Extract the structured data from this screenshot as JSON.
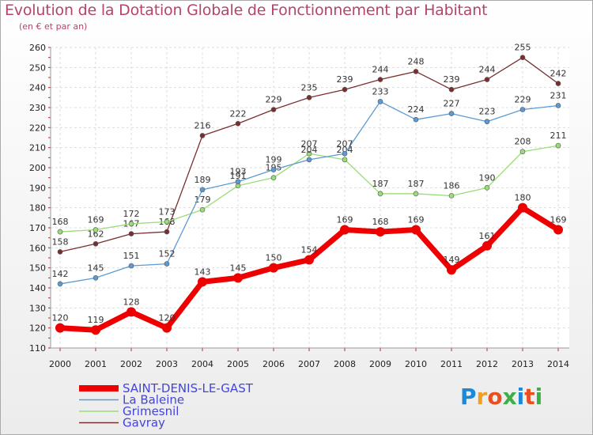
{
  "title": "Evolution de la Dotation Globale de Fonctionnement par Habitant",
  "subtitle": "(en € et par an)",
  "brand": {
    "text": "Proxiti",
    "colors": [
      "#1e88d8",
      "#f0a020",
      "#e85020",
      "#3fae49",
      "#1e88d8",
      "#e85020",
      "#3fae49"
    ]
  },
  "chart_data": {
    "type": "line",
    "title": "Evolution de la Dotation Globale de Fonctionnement par Habitant",
    "subtitle": "(en € et par an)",
    "xlabel": "",
    "ylabel": "",
    "x": [
      "2000",
      "2001",
      "2002",
      "2003",
      "2004",
      "2005",
      "2006",
      "2007",
      "2008",
      "2009",
      "2010",
      "2011",
      "2012",
      "2013",
      "2014"
    ],
    "yticks": [
      110,
      120,
      130,
      140,
      150,
      160,
      170,
      180,
      190,
      200,
      210,
      220,
      230,
      240,
      250,
      260
    ],
    "ylim": [
      110,
      260
    ],
    "grid": true,
    "legend_position": "bottom-left",
    "series": [
      {
        "name": "SAINT-DENIS-LE-GAST",
        "color": "#ee0000",
        "width": 7,
        "values": [
          120,
          119,
          128,
          120,
          143,
          145,
          150,
          154,
          169,
          168,
          169,
          149,
          161,
          180,
          169
        ]
      },
      {
        "name": "La Baleine",
        "color": "#5b9bd5",
        "width": 1.3,
        "values": [
          142,
          145,
          151,
          152,
          189,
          193,
          199,
          204,
          207,
          233,
          224,
          227,
          223,
          229,
          231
        ]
      },
      {
        "name": "Grimesnil",
        "color": "#99dd77",
        "width": 1.3,
        "values": [
          168,
          169,
          172,
          173,
          179,
          191,
          195,
          207,
          204,
          187,
          187,
          186,
          190,
          208,
          211
        ]
      },
      {
        "name": "Gavray",
        "color": "#7a2e2e",
        "width": 1.3,
        "values": [
          158,
          162,
          167,
          168,
          216,
          222,
          229,
          235,
          239,
          244,
          248,
          239,
          244,
          255,
          242
        ]
      }
    ]
  }
}
